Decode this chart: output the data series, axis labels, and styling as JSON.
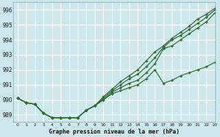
{
  "title": "Graphe pression niveau de la mer (hPa)",
  "bg_color": "#cce8ec",
  "grid_color": "#ffffff",
  "line_color": "#2d6a2d",
  "xlim": [
    -0.5,
    23
  ],
  "ylim": [
    988.5,
    996.5
  ],
  "yticks": [
    989,
    990,
    991,
    992,
    993,
    994,
    995,
    996
  ],
  "xticks": [
    0,
    1,
    2,
    3,
    4,
    5,
    6,
    7,
    8,
    9,
    10,
    11,
    12,
    13,
    14,
    15,
    16,
    17,
    18,
    19,
    20,
    21,
    22,
    23
  ],
  "series1": [
    990.1,
    989.8,
    989.7,
    989.1,
    988.8,
    988.8,
    988.8,
    988.8,
    989.3,
    989.6,
    990.0,
    990.4,
    990.6,
    990.8,
    991.0,
    991.4,
    992.0,
    991.1,
    991.3,
    991.6,
    991.8,
    992.0,
    992.2,
    992.5
  ],
  "series2": [
    990.1,
    989.8,
    989.7,
    989.1,
    988.8,
    988.8,
    988.8,
    988.8,
    989.3,
    989.6,
    990.0,
    990.5,
    990.8,
    991.1,
    991.3,
    991.8,
    992.4,
    993.4,
    993.6,
    994.0,
    994.4,
    994.8,
    995.2,
    995.8
  ],
  "series3": [
    990.1,
    989.8,
    989.7,
    989.1,
    988.8,
    988.8,
    988.8,
    988.8,
    989.3,
    989.6,
    990.1,
    990.6,
    991.0,
    991.4,
    991.7,
    992.2,
    992.8,
    993.5,
    994.0,
    994.3,
    994.7,
    995.1,
    995.5,
    996.0
  ],
  "series4": [
    990.1,
    989.8,
    989.7,
    989.1,
    988.8,
    988.8,
    988.8,
    988.8,
    989.3,
    989.6,
    990.2,
    990.7,
    991.2,
    991.6,
    992.0,
    992.6,
    993.2,
    993.6,
    994.1,
    994.5,
    994.9,
    995.4,
    995.7,
    996.1
  ]
}
